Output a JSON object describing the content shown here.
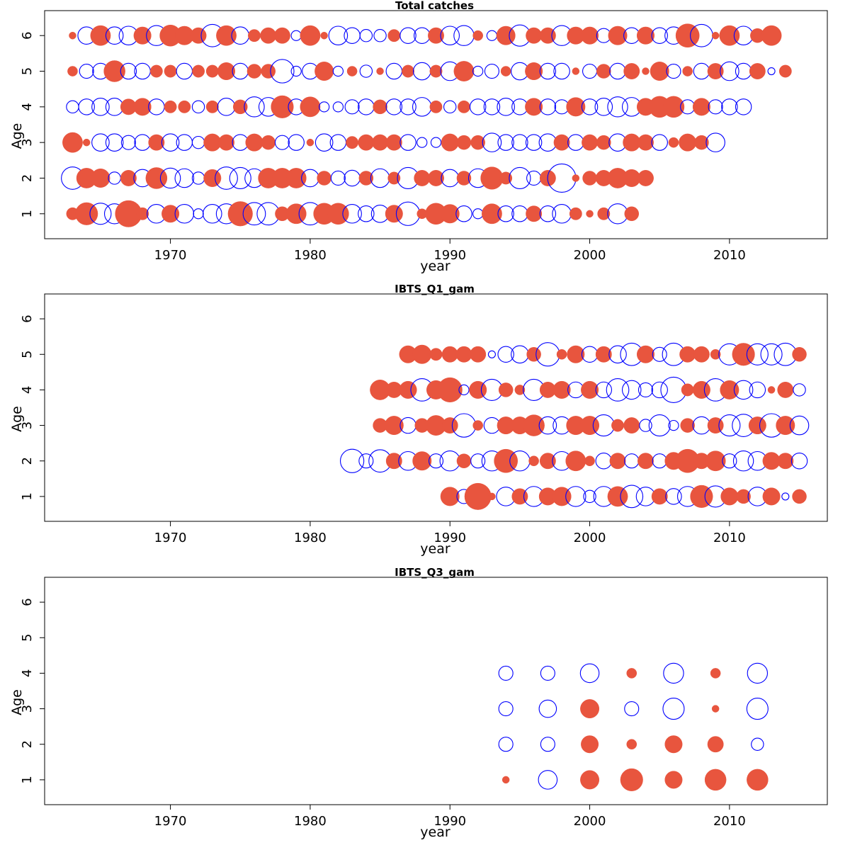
{
  "colors": {
    "positive": "#e8553e",
    "negative": "#0000ff",
    "frame": "#000000"
  },
  "chart_data": [
    {
      "type": "scatter",
      "title": "Total catches",
      "xlabel": "year",
      "ylabel": "Age",
      "xlim": [
        1961,
        2017
      ],
      "ylim": [
        0.3,
        6.7
      ],
      "xticks": [
        "1970",
        "1980",
        "1990",
        "2000",
        "2010"
      ],
      "yticks": [
        "1",
        "2",
        "3",
        "4",
        "5",
        "6"
      ],
      "encoding": "bubble size = |residual|; filled orange = positive, open blue = negative",
      "rows": [
        {
          "age": 6,
          "r": [
            0.1,
            -0.6,
            0.8,
            -0.6,
            -0.7,
            0.6,
            -0.8,
            0.9,
            0.7,
            0.5,
            -1.0,
            0.8,
            -0.6,
            0.3,
            0.5,
            0.5,
            -0.2,
            0.8,
            0.1,
            -0.7,
            -0.5,
            -0.3,
            -0.3,
            0.3,
            -0.5,
            -0.5,
            0.5,
            -0.7,
            -0.8,
            0.2,
            -0.2,
            0.7,
            -0.9,
            0.5,
            0.5,
            -0.8,
            0.6,
            0.6,
            -0.4,
            0.7,
            -0.5,
            0.6,
            -0.5,
            -0.6,
            1.1,
            -1.0,
            0.1,
            0.8,
            -0.7,
            0.4,
            0.8
          ]
        },
        {
          "age": 5,
          "r": [
            0.2,
            -0.4,
            -0.5,
            0.9,
            -0.5,
            -0.5,
            0.3,
            0.3,
            -0.5,
            0.3,
            0.3,
            0.6,
            -0.5,
            0.4,
            0.4,
            -1.1,
            -0.2,
            -0.5,
            0.7,
            -0.2,
            0.2,
            -0.3,
            0.1,
            -0.5,
            0.3,
            -0.6,
            0.3,
            -0.7,
            0.8,
            -0.2,
            -0.4,
            0.2,
            -0.6,
            0.6,
            -0.5,
            -0.5,
            0.1,
            -0.4,
            0.4,
            -0.5,
            0.5,
            0.1,
            0.7,
            -0.4,
            0.2,
            -0.5,
            0.5,
            -0.7,
            -0.5,
            0.5,
            -0.1,
            0.3
          ]
        },
        {
          "age": 4,
          "r": [
            -0.3,
            -0.5,
            -0.6,
            -0.6,
            0.5,
            0.6,
            -0.5,
            0.3,
            0.3,
            -0.3,
            0.3,
            -0.6,
            0.4,
            -0.8,
            -0.7,
            1.0,
            -0.5,
            0.8,
            -0.2,
            -0.2,
            -0.4,
            -0.5,
            0.4,
            -0.5,
            -0.5,
            -0.7,
            0.3,
            -0.3,
            0.3,
            -0.5,
            -0.5,
            -0.6,
            -0.5,
            0.6,
            -0.5,
            -0.4,
            0.7,
            -0.5,
            -0.6,
            -0.8,
            -0.7,
            0.6,
            0.9,
            0.9,
            -0.4,
            0.6,
            -0.4,
            -0.5,
            -0.5
          ]
        },
        {
          "age": 3,
          "r": [
            0.8,
            0.1,
            -0.6,
            -0.6,
            -0.4,
            -0.5,
            0.5,
            -0.6,
            -0.5,
            -0.3,
            0.6,
            0.5,
            -0.5,
            0.6,
            0.4,
            -0.4,
            -0.5,
            0.1,
            -0.6,
            -0.5,
            0.3,
            0.5,
            0.5,
            0.5,
            -0.5,
            -0.2,
            -0.2,
            0.6,
            0.4,
            0.4,
            -0.7,
            -0.5,
            -0.5,
            -0.5,
            -0.6,
            0.5,
            -0.5,
            0.5,
            0.4,
            -0.6,
            0.6,
            0.5,
            -0.5,
            0.2,
            0.6,
            0.4,
            -0.7
          ]
        },
        {
          "age": 2,
          "r": [
            -1.0,
            0.8,
            0.7,
            -0.3,
            0.5,
            -0.6,
            0.9,
            -0.8,
            -0.7,
            -0.3,
            0.6,
            -1.0,
            -0.9,
            -0.7,
            0.8,
            0.8,
            0.8,
            -0.6,
            0.4,
            -0.4,
            -0.5,
            0.4,
            -0.7,
            0.3,
            -0.9,
            0.5,
            0.5,
            -0.6,
            0.4,
            -0.7,
            1.0,
            0.3,
            -0.9,
            -0.4,
            0.5,
            -1.6,
            0.1,
            0.4,
            0.5,
            0.8,
            0.6,
            0.5
          ]
        },
        {
          "age": 1,
          "r": [
            0.3,
            1.0,
            -0.9,
            -0.8,
            1.4,
            0.3,
            -0.7,
            0.6,
            -0.7,
            -0.2,
            -0.7,
            -0.8,
            1.2,
            -1.0,
            -1.0,
            0.4,
            0.8,
            -1.0,
            0.9,
            0.9,
            -0.7,
            -0.5,
            -0.6,
            0.6,
            -1.1,
            0.2,
            0.9,
            0.7,
            -0.5,
            -0.2,
            0.8,
            -0.5,
            -0.5,
            0.5,
            -0.5,
            -0.7,
            0.3,
            0.1,
            0.3,
            -0.8,
            0.4
          ]
        }
      ]
    },
    {
      "type": "scatter",
      "title": "IBTS_Q1_gam",
      "xlabel": "year",
      "ylabel": "Age",
      "xlim": [
        1961,
        2017
      ],
      "ylim": [
        0.3,
        6.7
      ],
      "xticks": [
        "1970",
        "1980",
        "1990",
        "2000",
        "2010"
      ],
      "yticks": [
        "1",
        "2",
        "3",
        "4",
        "5",
        "6"
      ],
      "encoding": "bubble size = |residual|; filled orange = positive, open blue = negative",
      "rows": [
        {
          "age": 5,
          "r": [
            0.6,
            0.7,
            0.3,
            0.5,
            0.5,
            0.5,
            -0.1,
            -0.5,
            -0.6,
            0.4,
            -1.1,
            0.2,
            0.6,
            -0.5,
            0.5,
            -0.6,
            -1.0,
            0.6,
            -0.4,
            -1.0,
            0.5,
            0.5,
            0.2,
            -0.9,
            1.0,
            -0.9,
            -0.9,
            -1.0,
            0.4
          ]
        },
        {
          "age": 4,
          "r": [
            0.8,
            0.5,
            0.6,
            -1.0,
            0.7,
            1.2,
            -0.2,
            0.6,
            -0.9,
            0.4,
            0.2,
            -0.9,
            0.5,
            0.6,
            -0.5,
            0.6,
            -0.5,
            -1.0,
            -0.7,
            -0.4,
            -0.5,
            -1.3,
            0.3,
            0.6,
            -1.0,
            0.7,
            -0.7,
            -0.5,
            0.1,
            0.5,
            -0.3
          ]
        },
        {
          "age": 3,
          "r": [
            0.4,
            0.7,
            -0.5,
            0.4,
            0.8,
            0.5,
            -1.1,
            0.2,
            -0.5,
            0.6,
            0.6,
            0.9,
            -0.6,
            -0.6,
            0.7,
            0.7,
            -0.9,
            0.3,
            0.5,
            -0.3,
            -0.9,
            -0.2,
            0.4,
            -0.6,
            0.5,
            -0.9,
            -1.0,
            0.6,
            -1.1,
            0.7,
            -0.7
          ]
        },
        {
          "age": 2,
          "r": [
            -1.1,
            -0.4,
            -1.0,
            0.5,
            -0.7,
            0.7,
            -0.4,
            -0.8,
            0.4,
            -0.4,
            -0.8,
            1.1,
            -0.8,
            0.2,
            0.5,
            -0.7,
            0.8,
            0.2,
            -0.5,
            0.5,
            -0.4,
            0.5,
            -0.4,
            0.6,
            1.1,
            0.5,
            0.8,
            -0.4,
            -0.8,
            -0.7,
            0.6,
            0.5,
            -0.5
          ]
        },
        {
          "age": 1,
          "r": [
            0.7,
            -0.4,
            1.4,
            0.1,
            -0.7,
            0.5,
            -0.8,
            0.6,
            0.7,
            -0.8,
            -0.3,
            -0.8,
            0.8,
            -1.0,
            -0.7,
            0.5,
            -0.5,
            -0.8,
            1.0,
            -0.9,
            0.6,
            0.4,
            -0.7,
            0.6,
            -0.1,
            0.4
          ]
        }
      ]
    },
    {
      "type": "scatter",
      "title": "IBTS_Q3_gam",
      "xlabel": "year",
      "ylabel": "Age",
      "xlim": [
        1961,
        2017
      ],
      "ylim": [
        0.3,
        6.7
      ],
      "xticks": [
        "1970",
        "1980",
        "1990",
        "2000",
        "2010"
      ],
      "yticks": [
        "1",
        "2",
        "3",
        "4",
        "5",
        "6"
      ],
      "encoding": "bubble size = |residual|; filled orange = positive, open blue = negative",
      "years": [
        1994,
        1997,
        2000,
        2003,
        2006,
        2009,
        2012
      ],
      "rows": [
        {
          "age": 4,
          "r": [
            -0.4,
            -0.4,
            -0.7,
            0.2,
            -0.8,
            0.2,
            -0.8
          ]
        },
        {
          "age": 3,
          "r": [
            -0.4,
            -0.6,
            0.7,
            -0.4,
            -0.9,
            0.1,
            -0.9
          ]
        },
        {
          "age": 2,
          "r": [
            -0.4,
            -0.4,
            0.6,
            0.2,
            0.6,
            0.5,
            -0.3
          ]
        },
        {
          "age": 1,
          "r": [
            0.1,
            -0.7,
            0.7,
            1.0,
            0.6,
            0.9,
            0.9
          ]
        }
      ]
    }
  ]
}
